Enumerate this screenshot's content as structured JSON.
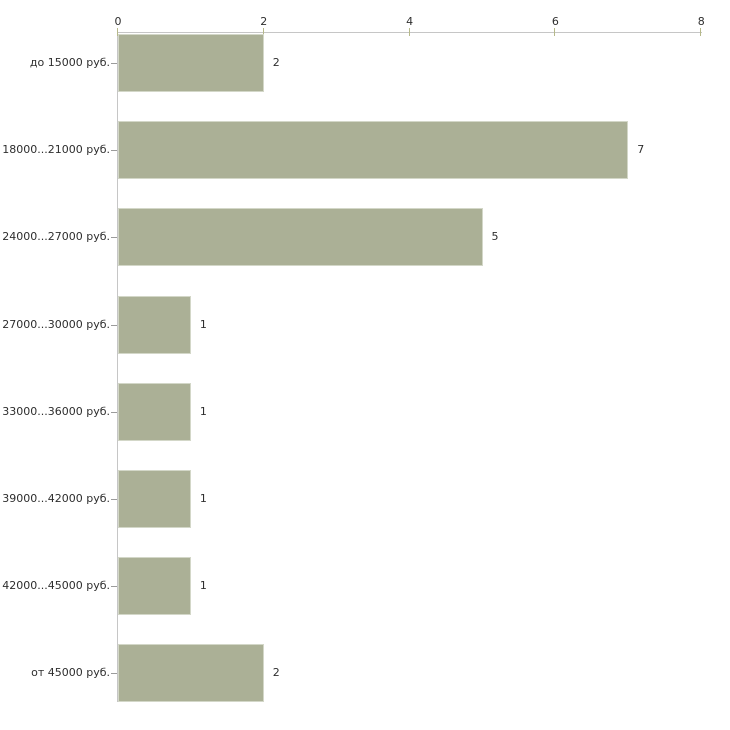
{
  "chart_data": {
    "type": "bar",
    "orientation": "horizontal",
    "title": "",
    "xlabel": "",
    "ylabel": "",
    "categories": [
      "до 15000 руб.",
      "18000...21000 руб.",
      "24000...27000 руб.",
      "27000...30000 руб.",
      "33000...36000 руб.",
      "39000...42000 руб.",
      "42000...45000 руб.",
      "от 45000 руб."
    ],
    "values": [
      2,
      7,
      5,
      1,
      1,
      1,
      1,
      2
    ],
    "value_labels": [
      "2",
      "7",
      "5",
      "1",
      "1",
      "1",
      "1",
      "2"
    ],
    "x_ticks": [
      0,
      2,
      4,
      6,
      8
    ],
    "xlim": [
      0,
      8
    ],
    "grid": false,
    "legend": false,
    "axis_position": "top",
    "colors": {
      "background": "#ffffff",
      "bar_fill": "#abb096",
      "bar_border": "#d3d7c8",
      "axis_line": "#c6c6c6",
      "x_tick_mark": "#b6b98a",
      "y_tick_mark": "#9b9b9b",
      "text": "#2e2e2e"
    }
  }
}
